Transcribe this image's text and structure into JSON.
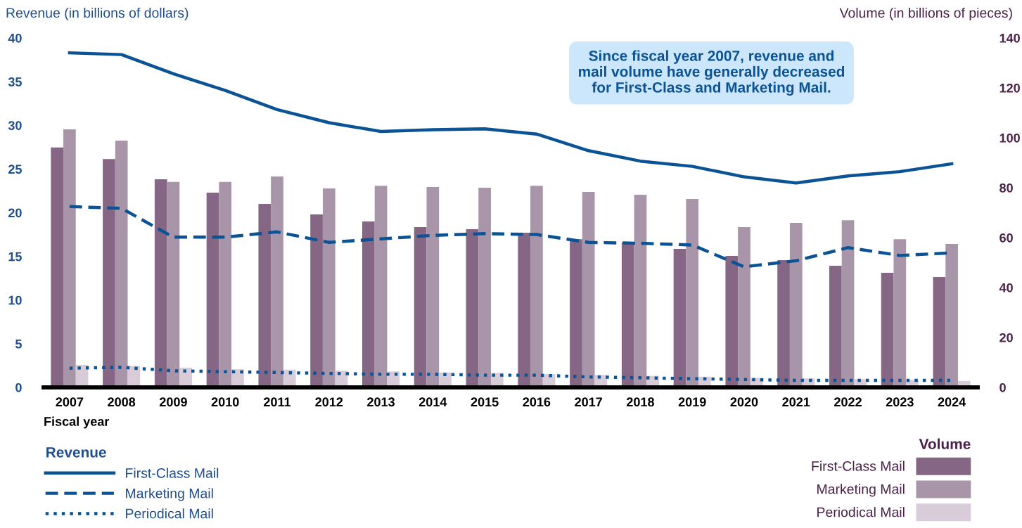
{
  "chart_data": {
    "type": "bar",
    "ylabel": "Revenue (in billions of dollars)",
    "y2label": "Volume (in billions of pieces)",
    "xlabel": "Fiscal year",
    "categories": [
      "2007",
      "2008",
      "2009",
      "2010",
      "2011",
      "2012",
      "2013",
      "2014",
      "2015",
      "2016",
      "2017",
      "2018",
      "2019",
      "2020",
      "2021",
      "2022",
      "2023",
      "2024"
    ],
    "series": [
      {
        "name": "First-Class Mail",
        "axis": "y2",
        "color": "#856785",
        "values": [
          96.1,
          91.5,
          83.4,
          78.0,
          73.5,
          69.3,
          66.5,
          64.2,
          63.4,
          62.0,
          59.4,
          58.0,
          55.5,
          52.7,
          51.0,
          48.7,
          45.9,
          44.2
        ]
      },
      {
        "name": "Marketing Mail",
        "axis": "y2",
        "color": "#a995aa",
        "values": [
          103.4,
          98.9,
          82.3,
          82.3,
          84.5,
          79.7,
          80.8,
          80.3,
          80.0,
          80.8,
          78.3,
          77.2,
          75.5,
          64.2,
          65.9,
          67.0,
          59.4,
          57.5
        ]
      },
      {
        "name": "Periodical Mail",
        "axis": "y2",
        "color": "#d8ccd8",
        "values": [
          9.0,
          8.6,
          7.9,
          7.3,
          7.1,
          6.7,
          6.4,
          6.0,
          5.8,
          5.3,
          5.0,
          4.6,
          4.3,
          3.8,
          3.6,
          3.3,
          3.0,
          2.6
        ]
      },
      {
        "name": "First-Class Mail",
        "type": "line",
        "line_style": "solid",
        "color": "#0b5394",
        "values": [
          38.3,
          38.1,
          35.9,
          34.0,
          31.8,
          30.3,
          29.3,
          29.5,
          29.6,
          29.0,
          27.1,
          25.9,
          25.3,
          24.1,
          23.4,
          24.2,
          24.7,
          25.6
        ]
      },
      {
        "name": "Marketing Mail",
        "type": "line",
        "line_style": "dashed",
        "color": "#0b5394",
        "values": [
          20.7,
          20.5,
          17.2,
          17.2,
          17.8,
          16.6,
          17.0,
          17.4,
          17.6,
          17.5,
          16.6,
          16.5,
          16.3,
          13.8,
          14.5,
          16.0,
          15.1,
          15.4
        ]
      },
      {
        "name": "Periodical Mail",
        "type": "line",
        "line_style": "dotted",
        "color": "#0b5394",
        "values": [
          2.2,
          2.3,
          1.9,
          1.8,
          1.7,
          1.6,
          1.5,
          1.5,
          1.4,
          1.4,
          1.2,
          1.1,
          1.0,
          0.9,
          0.8,
          0.8,
          0.8,
          0.8
        ]
      }
    ],
    "ylim": [
      0,
      40
    ],
    "yticks": [
      0,
      5,
      10,
      15,
      20,
      25,
      30,
      35,
      40
    ],
    "y2lim": [
      0,
      140
    ],
    "y2ticks": [
      0,
      20,
      40,
      60,
      80,
      100,
      120,
      140
    ],
    "grid": false,
    "legend": "bottom",
    "legend_title": [
      "Revenue",
      "Volume"
    ],
    "annotations": [
      "Since fiscal year 2007, revenue and\nmail volume have generally decreased\nfor First-Class and Marketing Mail."
    ]
  }
}
